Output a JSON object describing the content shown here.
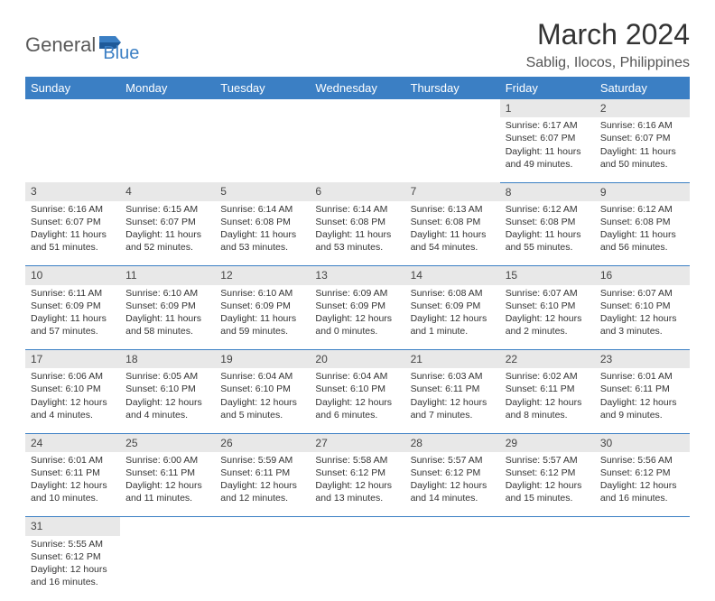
{
  "logo": {
    "part1": "General",
    "part2": "Blue"
  },
  "title": "March 2024",
  "location": "Sablig, Ilocos, Philippines",
  "colors": {
    "header_bg": "#3b7fc4",
    "header_text": "#ffffff",
    "daynum_bg": "#e8e8e8",
    "border": "#3b7fc4",
    "logo_gray": "#5a5a5a",
    "logo_blue": "#3b7fc4"
  },
  "weekdays": [
    "Sunday",
    "Monday",
    "Tuesday",
    "Wednesday",
    "Thursday",
    "Friday",
    "Saturday"
  ],
  "weeks": [
    [
      null,
      null,
      null,
      null,
      null,
      {
        "n": "1",
        "sr": "Sunrise: 6:17 AM",
        "ss": "Sunset: 6:07 PM",
        "dl": "Daylight: 11 hours and 49 minutes."
      },
      {
        "n": "2",
        "sr": "Sunrise: 6:16 AM",
        "ss": "Sunset: 6:07 PM",
        "dl": "Daylight: 11 hours and 50 minutes."
      }
    ],
    [
      {
        "n": "3",
        "sr": "Sunrise: 6:16 AM",
        "ss": "Sunset: 6:07 PM",
        "dl": "Daylight: 11 hours and 51 minutes."
      },
      {
        "n": "4",
        "sr": "Sunrise: 6:15 AM",
        "ss": "Sunset: 6:07 PM",
        "dl": "Daylight: 11 hours and 52 minutes."
      },
      {
        "n": "5",
        "sr": "Sunrise: 6:14 AM",
        "ss": "Sunset: 6:08 PM",
        "dl": "Daylight: 11 hours and 53 minutes."
      },
      {
        "n": "6",
        "sr": "Sunrise: 6:14 AM",
        "ss": "Sunset: 6:08 PM",
        "dl": "Daylight: 11 hours and 53 minutes."
      },
      {
        "n": "7",
        "sr": "Sunrise: 6:13 AM",
        "ss": "Sunset: 6:08 PM",
        "dl": "Daylight: 11 hours and 54 minutes."
      },
      {
        "n": "8",
        "sr": "Sunrise: 6:12 AM",
        "ss": "Sunset: 6:08 PM",
        "dl": "Daylight: 11 hours and 55 minutes."
      },
      {
        "n": "9",
        "sr": "Sunrise: 6:12 AM",
        "ss": "Sunset: 6:08 PM",
        "dl": "Daylight: 11 hours and 56 minutes."
      }
    ],
    [
      {
        "n": "10",
        "sr": "Sunrise: 6:11 AM",
        "ss": "Sunset: 6:09 PM",
        "dl": "Daylight: 11 hours and 57 minutes."
      },
      {
        "n": "11",
        "sr": "Sunrise: 6:10 AM",
        "ss": "Sunset: 6:09 PM",
        "dl": "Daylight: 11 hours and 58 minutes."
      },
      {
        "n": "12",
        "sr": "Sunrise: 6:10 AM",
        "ss": "Sunset: 6:09 PM",
        "dl": "Daylight: 11 hours and 59 minutes."
      },
      {
        "n": "13",
        "sr": "Sunrise: 6:09 AM",
        "ss": "Sunset: 6:09 PM",
        "dl": "Daylight: 12 hours and 0 minutes."
      },
      {
        "n": "14",
        "sr": "Sunrise: 6:08 AM",
        "ss": "Sunset: 6:09 PM",
        "dl": "Daylight: 12 hours and 1 minute."
      },
      {
        "n": "15",
        "sr": "Sunrise: 6:07 AM",
        "ss": "Sunset: 6:10 PM",
        "dl": "Daylight: 12 hours and 2 minutes."
      },
      {
        "n": "16",
        "sr": "Sunrise: 6:07 AM",
        "ss": "Sunset: 6:10 PM",
        "dl": "Daylight: 12 hours and 3 minutes."
      }
    ],
    [
      {
        "n": "17",
        "sr": "Sunrise: 6:06 AM",
        "ss": "Sunset: 6:10 PM",
        "dl": "Daylight: 12 hours and 4 minutes."
      },
      {
        "n": "18",
        "sr": "Sunrise: 6:05 AM",
        "ss": "Sunset: 6:10 PM",
        "dl": "Daylight: 12 hours and 4 minutes."
      },
      {
        "n": "19",
        "sr": "Sunrise: 6:04 AM",
        "ss": "Sunset: 6:10 PM",
        "dl": "Daylight: 12 hours and 5 minutes."
      },
      {
        "n": "20",
        "sr": "Sunrise: 6:04 AM",
        "ss": "Sunset: 6:10 PM",
        "dl": "Daylight: 12 hours and 6 minutes."
      },
      {
        "n": "21",
        "sr": "Sunrise: 6:03 AM",
        "ss": "Sunset: 6:11 PM",
        "dl": "Daylight: 12 hours and 7 minutes."
      },
      {
        "n": "22",
        "sr": "Sunrise: 6:02 AM",
        "ss": "Sunset: 6:11 PM",
        "dl": "Daylight: 12 hours and 8 minutes."
      },
      {
        "n": "23",
        "sr": "Sunrise: 6:01 AM",
        "ss": "Sunset: 6:11 PM",
        "dl": "Daylight: 12 hours and 9 minutes."
      }
    ],
    [
      {
        "n": "24",
        "sr": "Sunrise: 6:01 AM",
        "ss": "Sunset: 6:11 PM",
        "dl": "Daylight: 12 hours and 10 minutes."
      },
      {
        "n": "25",
        "sr": "Sunrise: 6:00 AM",
        "ss": "Sunset: 6:11 PM",
        "dl": "Daylight: 12 hours and 11 minutes."
      },
      {
        "n": "26",
        "sr": "Sunrise: 5:59 AM",
        "ss": "Sunset: 6:11 PM",
        "dl": "Daylight: 12 hours and 12 minutes."
      },
      {
        "n": "27",
        "sr": "Sunrise: 5:58 AM",
        "ss": "Sunset: 6:12 PM",
        "dl": "Daylight: 12 hours and 13 minutes."
      },
      {
        "n": "28",
        "sr": "Sunrise: 5:57 AM",
        "ss": "Sunset: 6:12 PM",
        "dl": "Daylight: 12 hours and 14 minutes."
      },
      {
        "n": "29",
        "sr": "Sunrise: 5:57 AM",
        "ss": "Sunset: 6:12 PM",
        "dl": "Daylight: 12 hours and 15 minutes."
      },
      {
        "n": "30",
        "sr": "Sunrise: 5:56 AM",
        "ss": "Sunset: 6:12 PM",
        "dl": "Daylight: 12 hours and 16 minutes."
      }
    ],
    [
      {
        "n": "31",
        "sr": "Sunrise: 5:55 AM",
        "ss": "Sunset: 6:12 PM",
        "dl": "Daylight: 12 hours and 16 minutes."
      },
      null,
      null,
      null,
      null,
      null,
      null
    ]
  ]
}
